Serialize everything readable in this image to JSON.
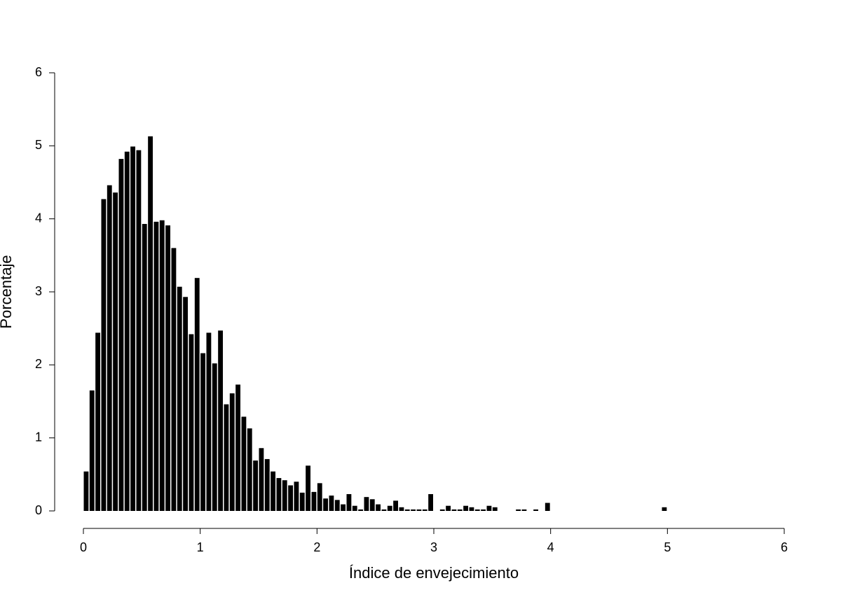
{
  "chart_data": {
    "type": "histogram",
    "xlabel": "Índice de envejecimiento",
    "ylabel": "Porcentaje",
    "bins": [
      0,
      0.05,
      0.1,
      0.15,
      0.2,
      0.25,
      0.3,
      0.35,
      0.4,
      0.45,
      0.5,
      0.55,
      0.6,
      0.65,
      0.7,
      0.75,
      0.8,
      0.85,
      0.9,
      0.95,
      1,
      1.05,
      1.1,
      1.15,
      1.2,
      1.25,
      1.3,
      1.35,
      1.4,
      1.45,
      1.5,
      1.55,
      1.6,
      1.65,
      1.7,
      1.75,
      1.8,
      1.85,
      1.9,
      1.95,
      2,
      2.05,
      2.1,
      2.15,
      2.2,
      2.25,
      2.3,
      2.35,
      2.4,
      2.45,
      2.5,
      2.55,
      2.6,
      2.65,
      2.7,
      2.75,
      2.8,
      2.85,
      2.9,
      2.95,
      3,
      3.05,
      3.1,
      3.15,
      3.2,
      3.25,
      3.3,
      3.35,
      3.4,
      3.45,
      3.5,
      3.55,
      3.6,
      3.65,
      3.7,
      3.75,
      3.8,
      3.85,
      3.9,
      3.95,
      4,
      4.05,
      4.1,
      4.15,
      4.2,
      4.25,
      4.3,
      4.35,
      4.4,
      4.45,
      4.5,
      4.55,
      4.6,
      4.65,
      4.7,
      4.75,
      4.8,
      4.85,
      4.9,
      4.95,
      5
    ],
    "values": [
      0.54,
      1.65,
      2.44,
      4.27,
      4.46,
      4.36,
      4.82,
      4.92,
      4.99,
      4.94,
      3.93,
      5.13,
      3.96,
      3.98,
      3.91,
      3.6,
      3.07,
      2.93,
      2.42,
      3.19,
      2.16,
      2.44,
      2.02,
      2.47,
      1.46,
      1.61,
      1.73,
      1.29,
      1.13,
      0.69,
      0.86,
      0.71,
      0.54,
      0.45,
      0.42,
      0.35,
      0.4,
      0.25,
      0.62,
      0.26,
      0.38,
      0.17,
      0.21,
      0.15,
      0.09,
      0.23,
      0.07,
      0.02,
      0.19,
      0.16,
      0.09,
      0.02,
      0.07,
      0.14,
      0.05,
      0.02,
      0.02,
      0.02,
      0.02,
      0.23,
      0,
      0.02,
      0.07,
      0.02,
      0.02,
      0.07,
      0.05,
      0.02,
      0.02,
      0.07,
      0.05,
      0,
      0,
      0,
      0.02,
      0.02,
      0,
      0.02,
      0,
      0.11,
      0,
      0,
      0,
      0,
      0,
      0,
      0,
      0,
      0,
      0,
      0,
      0,
      0,
      0,
      0,
      0,
      0,
      0,
      0,
      0.05
    ],
    "color": "#000000",
    "xlim": [
      0,
      6
    ],
    "xticks": [
      0,
      1,
      2,
      3,
      4,
      5,
      6
    ],
    "ylim": [
      0,
      6
    ],
    "yticks": [
      0,
      1,
      2,
      3,
      4,
      5,
      6
    ]
  }
}
